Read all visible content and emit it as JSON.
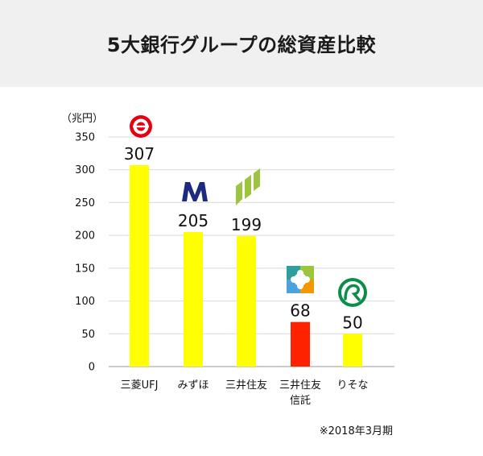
{
  "header": {
    "title": "5大銀行グループの総資産比較"
  },
  "note": "※2018年3月期",
  "colors": {
    "header_bg": "#f0f0f0",
    "bar_default": "#ffff00",
    "bar_highlight": "#ff2200",
    "grid": "#d9d9d9"
  },
  "logos": [
    "mufg-logo",
    "mizuho-logo",
    "smbc-logo",
    "smtb-logo",
    "resona-logo"
  ],
  "chart_data": {
    "type": "bar",
    "unit_label": "（兆円）",
    "categories": [
      "三菱UFJ",
      "みずほ",
      "三井住友",
      "三井住友\n信託",
      "りそな"
    ],
    "values": [
      307,
      205,
      199,
      68,
      50
    ],
    "value_labels": [
      "307",
      "205",
      "199",
      "68",
      "50"
    ],
    "bar_colors": [
      "#ffff00",
      "#ffff00",
      "#ffff00",
      "#ff2200",
      "#ffff00"
    ],
    "yticks": [
      0,
      50,
      100,
      150,
      200,
      250,
      300,
      350
    ],
    "ylim": [
      0,
      350
    ],
    "grid": true,
    "xlabel": "",
    "ylabel": ""
  }
}
